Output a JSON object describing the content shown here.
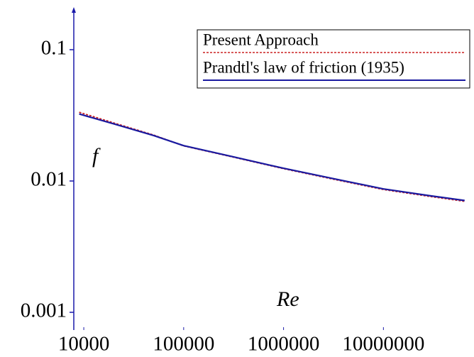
{
  "chart_data": {
    "type": "line",
    "xlabel": "Re",
    "ylabel": "f",
    "x": [
      9000,
      20000,
      50000,
      100000,
      300000,
      1000000,
      3000000,
      10000000,
      30000000,
      65000000
    ],
    "series": [
      {
        "name": "Present Approach",
        "color": "#cc2222",
        "dash": "dotted",
        "values": [
          0.0334,
          0.0277,
          0.0224,
          0.0185,
          0.0153,
          0.0124,
          0.0104,
          0.0086,
          0.0076,
          0.007
        ]
      },
      {
        "name": "Prandtl's law of friction (1935)",
        "color": "#1a1aa0",
        "dash": "solid",
        "values": [
          0.0324,
          0.0272,
          0.0222,
          0.0186,
          0.0154,
          0.0125,
          0.0105,
          0.0087,
          0.0077,
          0.0071
        ]
      }
    ],
    "xlim": [
      7943,
      70800000
    ],
    "xticks": [
      10000,
      100000,
      1000000,
      10000000
    ],
    "ylim": [
      0.000733,
      0.211
    ],
    "yticks": [
      0.1,
      0.01,
      0.001
    ],
    "xscale": "log",
    "yscale": "log",
    "grid": false,
    "legend": "upper right",
    "axis_color": "#1a1aaa"
  }
}
